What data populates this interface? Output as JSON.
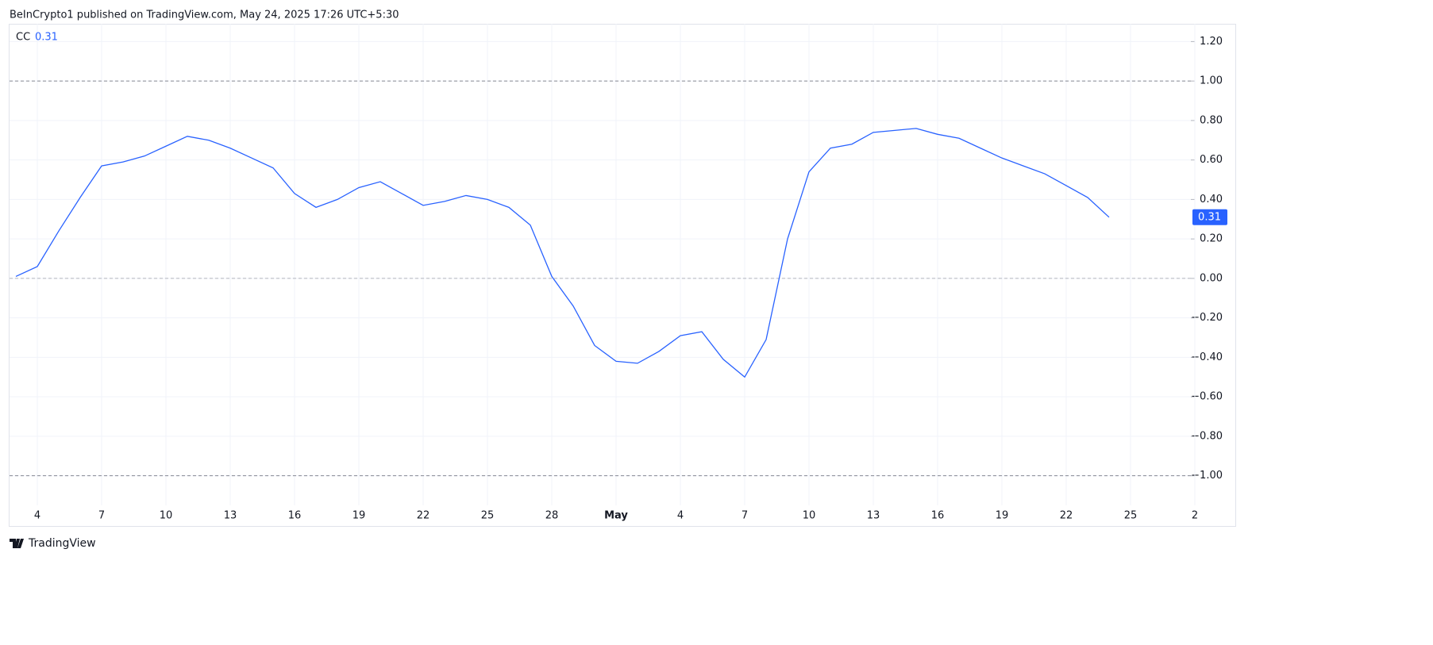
{
  "header": "BeInCrypto1 published on TradingView.com, May 24, 2025 17:26 UTC+5:30",
  "footer": "TradingView",
  "chart_data": {
    "type": "line",
    "categories": [
      null,
      "4",
      null,
      null,
      "7",
      null,
      null,
      "10",
      null,
      null,
      "13",
      null,
      null,
      "16",
      null,
      null,
      "19",
      null,
      null,
      "22",
      null,
      null,
      "25",
      null,
      null,
      "28",
      null,
      null,
      "May",
      null,
      null,
      "4",
      null,
      null,
      "7",
      null,
      null,
      "10",
      null,
      null,
      "13",
      null,
      null,
      "16",
      null,
      null,
      "19",
      null,
      null,
      "22",
      null,
      null,
      "25",
      null,
      null,
      "2"
    ],
    "series": [
      {
        "name": "CC",
        "color": "#2962ff",
        "values": [
          0.01,
          0.06,
          0.24,
          0.41,
          0.57,
          0.59,
          0.62,
          0.67,
          0.72,
          0.7,
          0.66,
          0.61,
          0.56,
          0.43,
          0.36,
          0.4,
          0.46,
          0.49,
          0.43,
          0.37,
          0.39,
          0.42,
          0.4,
          0.36,
          0.27,
          0.01,
          -0.14,
          -0.34,
          -0.42,
          -0.43,
          -0.37,
          -0.29,
          -0.27,
          -0.41,
          -0.5,
          -0.31,
          0.2,
          0.54,
          0.66,
          0.68,
          0.74,
          0.75,
          0.76,
          0.73,
          0.71,
          0.66,
          0.61,
          0.57,
          0.53,
          0.47,
          0.41,
          0.31,
          null,
          null,
          null,
          null
        ]
      }
    ],
    "ylim": [
      -1.15,
      1.29
    ],
    "yticks": [
      {
        "value": 1.2,
        "label": "1.20"
      },
      {
        "value": 1,
        "label": "1.00"
      },
      {
        "value": 0.8,
        "label": "0.80"
      },
      {
        "value": 0.6,
        "label": "0.60"
      },
      {
        "value": 0.4,
        "label": "0.40"
      },
      {
        "value": 0.2,
        "label": "0.20"
      },
      {
        "value": 0,
        "label": "0.00"
      },
      {
        "value": -0.2,
        "label": "−0.20"
      },
      {
        "value": -0.4,
        "label": "−0.40"
      },
      {
        "value": -0.6,
        "label": "−0.60"
      },
      {
        "value": -0.8,
        "label": "−0.80"
      },
      {
        "value": -1,
        "label": "−1.00"
      }
    ],
    "hlines": [
      1,
      0,
      -1
    ],
    "grid": true
  }
}
